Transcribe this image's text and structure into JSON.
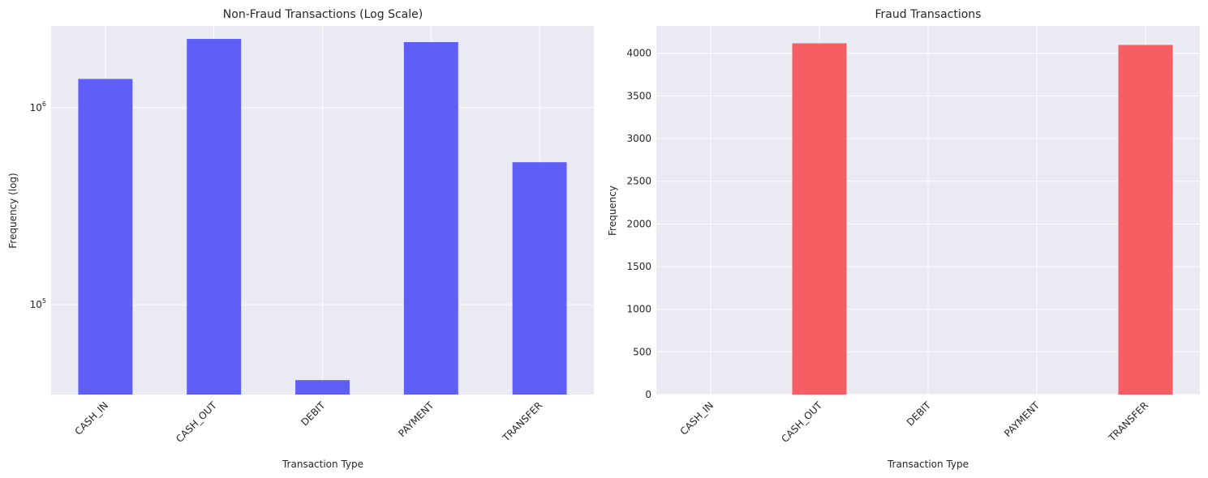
{
  "chart_data": [
    {
      "type": "bar",
      "title": "Non-Fraud Transactions (Log Scale)",
      "xlabel": "Transaction Type",
      "ylabel": "Frequency (log)",
      "yscale": "log",
      "categories": [
        "CASH_IN",
        "CASH_OUT",
        "DEBIT",
        "PAYMENT",
        "TRANSFER"
      ],
      "values": [
        1399284,
        2233384,
        41432,
        2151495,
        528812
      ],
      "ylim": [
        35000,
        2600000
      ],
      "yticks": [
        {
          "value": 100000,
          "base": "10",
          "exp": "5"
        },
        {
          "value": 1000000,
          "base": "10",
          "exp": "6"
        }
      ],
      "color": "#5a5af8",
      "grid": true
    },
    {
      "type": "bar",
      "title": "Fraud Transactions",
      "xlabel": "Transaction Type",
      "ylabel": "Frequency",
      "yscale": "linear",
      "categories": [
        "CASH_IN",
        "CASH_OUT",
        "DEBIT",
        "PAYMENT",
        "TRANSFER"
      ],
      "values": [
        0,
        4116,
        0,
        0,
        4097
      ],
      "ylim": [
        0,
        4320
      ],
      "yticks": [
        0,
        500,
        1000,
        1500,
        2000,
        2500,
        3000,
        3500,
        4000
      ],
      "color": "#f55a5f",
      "grid": true
    }
  ]
}
